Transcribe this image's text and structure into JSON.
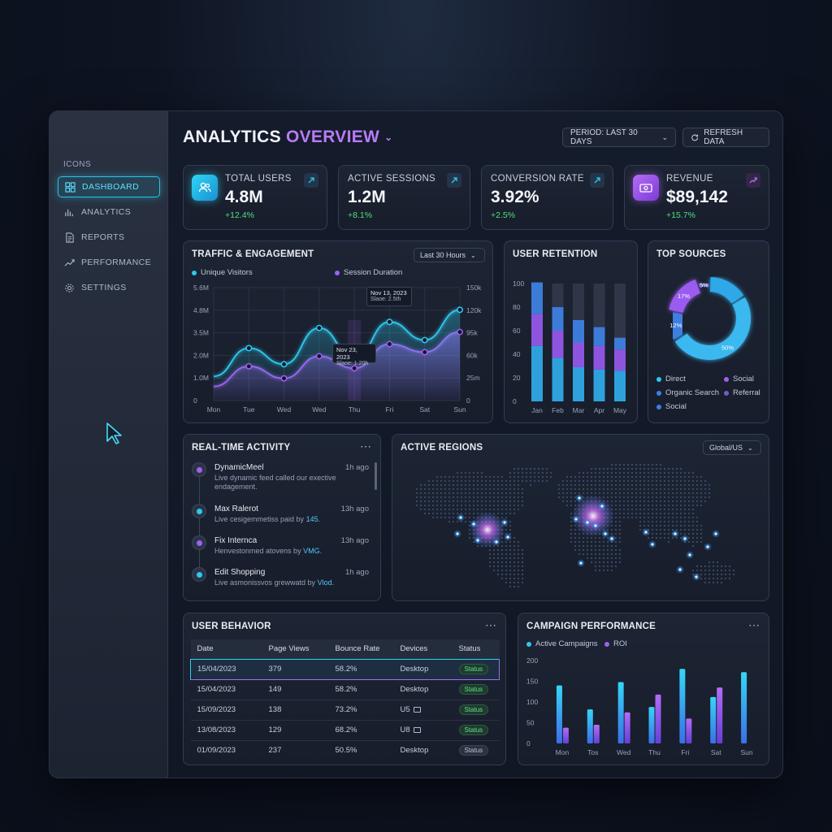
{
  "sidebar": {
    "heading": "ICONS",
    "items": [
      {
        "label": "DASHBOARD",
        "icon": "dashboard-icon"
      },
      {
        "label": "ANALYTICS",
        "icon": "bar-chart-icon"
      },
      {
        "label": "REPORTS",
        "icon": "document-icon"
      },
      {
        "label": "PERFORMANCE",
        "icon": "trend-icon"
      },
      {
        "label": "SETTINGS",
        "icon": "gear-icon"
      }
    ]
  },
  "header": {
    "title_part1": "ANALYTICS",
    "title_part2": "OVERVIEW",
    "period_label": "PERIOD: LAST 30 DAYS",
    "refresh_label": "REFRESH DATA"
  },
  "kpis": [
    {
      "label": "TOTAL USERS",
      "value": "4.8M",
      "delta": "+12.4%",
      "icon": "users-icon"
    },
    {
      "label": "ACTIVE SESSIONS",
      "value": "1.2M",
      "delta": "+8.1%"
    },
    {
      "label": "CONVERSION RATE",
      "value": "3.92%",
      "delta": "+2.5%"
    },
    {
      "label": "REVENUE",
      "value": "$89,142",
      "delta": "+15.7%",
      "icon": "money-icon"
    }
  ],
  "traffic": {
    "title": "TRAFFIC & ENGAGEMENT",
    "range_label": "Last 30 Hours",
    "legend": [
      "Unique Visitors",
      "Session Duration"
    ],
    "tooltip1": {
      "date": "Nov 13, 2023",
      "value": "Slaoe: 2.5th"
    },
    "tooltip2": {
      "date": "Nov 23, 2023",
      "value": "Slaoe: 1.20h"
    }
  },
  "retention": {
    "title": "USER RETENTION"
  },
  "sources": {
    "title": "TOP SOURCES",
    "legend": [
      "Direct",
      "Social",
      "Organic Search",
      "Referral",
      "Social"
    ]
  },
  "activity": {
    "title": "REAL-TIME ACTIVITY",
    "items": [
      {
        "name": "DynamicMeel",
        "time": "1h ago",
        "desc": "Live dynamic feed called our exective endagement.",
        "highlight": "",
        "color": "#a25ff0"
      },
      {
        "name": "Max Ralerot",
        "time": "13h ago",
        "desc": "Live cesigemmetiss paid by ",
        "highlight": "145.",
        "color": "#2fc8ee"
      },
      {
        "name": "Fix Internca",
        "time": "13h ago",
        "desc": "Henvestonmed atovens by ",
        "highlight": "VMG.",
        "color": "#a25ff0"
      },
      {
        "name": "Edit Shopping",
        "time": "1h ago",
        "desc": "Live asmonissvos grewwatd by ",
        "highlight": "Vlod.",
        "color": "#2fc8ee"
      }
    ]
  },
  "regions": {
    "title": "ACTIVE REGIONS",
    "selector": "Global/US"
  },
  "behavior": {
    "title": "USER BEHAVIOR",
    "columns": [
      "Date",
      "Page Views",
      "Bounce Rate",
      "Devices",
      "Status"
    ],
    "rows": [
      {
        "date": "15/04/2023",
        "views": "379",
        "bounce": "58.2%",
        "device": "Desktop",
        "status": "Status",
        "device_icon": ""
      },
      {
        "date": "15/04/2023",
        "views": "149",
        "bounce": "58.2%",
        "device": "Desktop",
        "status": "Status",
        "device_icon": ""
      },
      {
        "date": "15/09/2023",
        "views": "138",
        "bounce": "73.2%",
        "device": "U5",
        "status": "Status",
        "device_icon": "tablet-icon"
      },
      {
        "date": "13/08/2023",
        "views": "129",
        "bounce": "68.2%",
        "device": "U8",
        "status": "Status",
        "device_icon": "tablet-icon"
      },
      {
        "date": "01/09/2023",
        "views": "237",
        "bounce": "50.5%",
        "device": "Desktop",
        "status": "Status",
        "device_icon": ""
      }
    ]
  },
  "campaign": {
    "title": "CAMPAIGN PERFORMANCE",
    "legend": [
      "Active Campaigns",
      "ROI"
    ]
  },
  "colors": {
    "cyan": "#2fc8ee",
    "purple": "#a25ff0",
    "green": "#4ee07d",
    "blue": "#3d7fe0"
  },
  "chart_data": [
    {
      "type": "line",
      "title": "TRAFFIC & ENGAGEMENT",
      "x": [
        "Mon",
        "Tue",
        "Wed",
        "Wed",
        "Thu",
        "Fri",
        "Sat",
        "Sun"
      ],
      "y_left_ticks": [
        "5.6M",
        "4.8M",
        "3.5M",
        "2.0M",
        "1.0M",
        "0"
      ],
      "y_right_ticks": [
        "150k",
        "120k",
        "95k",
        "60k",
        "25m",
        "0"
      ],
      "series": [
        {
          "name": "Unique Visitors",
          "values": [
            1.2,
            2.6,
            1.8,
            3.6,
            2.1,
            3.9,
            3.0,
            4.5
          ]
        },
        {
          "name": "Session Duration",
          "values": [
            0.7,
            1.7,
            1.1,
            2.2,
            1.6,
            2.8,
            2.4,
            3.4
          ]
        }
      ],
      "ylim": [
        0,
        5.6
      ],
      "grid": true
    },
    {
      "type": "bar",
      "title": "USER RETENTION",
      "categories": [
        "Jan",
        "Feb",
        "Mar",
        "Apr",
        "May"
      ],
      "y_ticks": [
        100,
        80,
        60,
        40,
        20,
        0
      ],
      "stacked_values": [
        [
          47,
          27,
          27
        ],
        [
          37,
          23,
          20
        ],
        [
          29,
          21,
          19
        ],
        [
          27,
          20,
          16
        ],
        [
          26,
          18,
          10
        ]
      ],
      "totals": [
        100,
        100,
        100,
        100,
        100
      ],
      "ylim": [
        0,
        100
      ]
    },
    {
      "type": "pie",
      "title": "TOP SOURCES",
      "slices": [
        {
          "label": "50%",
          "value": 50
        },
        {
          "label": "17%",
          "value": 17
        },
        {
          "label": "12%",
          "value": 12
        },
        {
          "label": "5%",
          "value": 5
        },
        {
          "label": "",
          "value": 16
        }
      ]
    },
    {
      "type": "bar",
      "title": "CAMPAIGN PERFORMANCE",
      "categories": [
        "Mon",
        "Tos",
        "Wed",
        "Thu",
        "Fri",
        "Sat",
        "Sun"
      ],
      "y_ticks": [
        200,
        150,
        100,
        50,
        0
      ],
      "series": [
        {
          "name": "Active Campaigns",
          "values": [
            140,
            82,
            148,
            88,
            180,
            112,
            172
          ]
        },
        {
          "name": "ROI",
          "values": [
            38,
            45,
            75,
            118,
            60,
            135,
            0
          ]
        }
      ],
      "ylim": [
        0,
        200
      ]
    }
  ]
}
